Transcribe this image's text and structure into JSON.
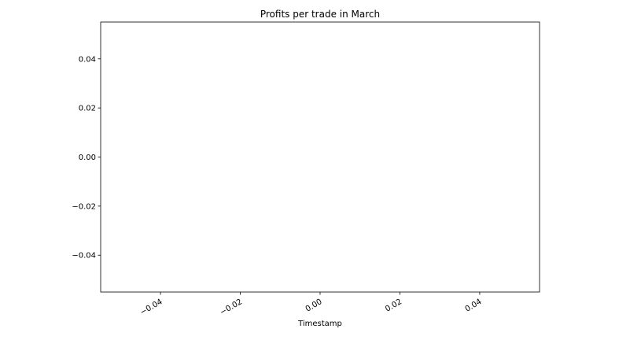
{
  "chart_data": {
    "type": "line",
    "title": "Profits per trade in March",
    "xlabel": "Timestamp",
    "ylabel": "",
    "series": [],
    "xlim": [
      -0.055,
      0.055
    ],
    "ylim": [
      -0.055,
      0.055
    ],
    "x_ticks": [
      -0.04,
      -0.02,
      0.0,
      0.02,
      0.04
    ],
    "x_tick_labels": [
      "−0.04",
      "−0.02",
      "0.00",
      "0.02",
      "0.04"
    ],
    "x_tick_label_rotation_deg": 30,
    "y_ticks": [
      -0.04,
      -0.02,
      0.0,
      0.02,
      0.04
    ],
    "y_tick_labels": [
      "−0.04",
      "−0.02",
      "0.00",
      "0.02",
      "0.04"
    ],
    "grid": false,
    "legend": "none"
  }
}
